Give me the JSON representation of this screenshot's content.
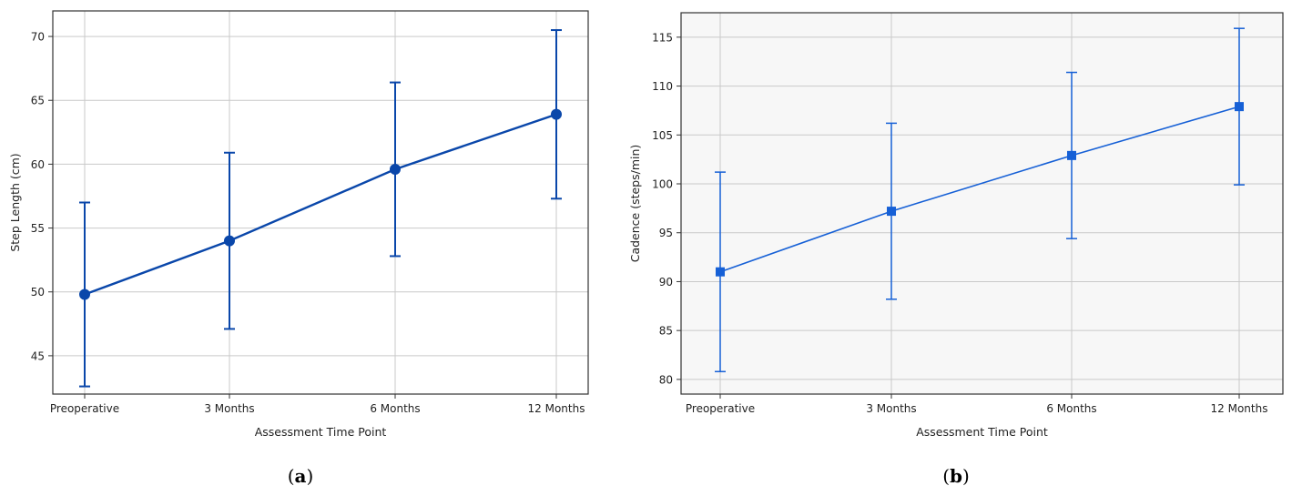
{
  "chart_data": [
    {
      "type": "line",
      "panel_label": "a",
      "xlabel": "Assessment Time Point",
      "ylabel": "Step Length (cm)",
      "categories": [
        "Preoperative",
        "3 Months",
        "6 Months",
        "12 Months"
      ],
      "ylim": [
        42,
        72
      ],
      "yticks": [
        45,
        50,
        55,
        60,
        65,
        70
      ],
      "grid": true,
      "series": [
        {
          "values": [
            49.8,
            54.0,
            59.6,
            63.9
          ],
          "error": [
            7.2,
            6.9,
            6.8,
            6.6
          ],
          "marker": "circle",
          "color": "#0a47aa"
        }
      ],
      "background": "#ffffff"
    },
    {
      "type": "line",
      "panel_label": "b",
      "xlabel": "Assessment Time Point",
      "ylabel": "Cadence (steps/min)",
      "categories": [
        "Preoperative",
        "3 Months",
        "6 Months",
        "12 Months"
      ],
      "ylim": [
        78.5,
        117.5
      ],
      "yticks": [
        80,
        85,
        90,
        95,
        100,
        105,
        110,
        115
      ],
      "grid": true,
      "series": [
        {
          "values": [
            91.0,
            97.2,
            102.9,
            107.9
          ],
          "error": [
            10.2,
            9.0,
            8.5,
            8.0
          ],
          "marker": "square",
          "color": "#1660d6"
        }
      ],
      "background": "#f7f7f7"
    }
  ]
}
